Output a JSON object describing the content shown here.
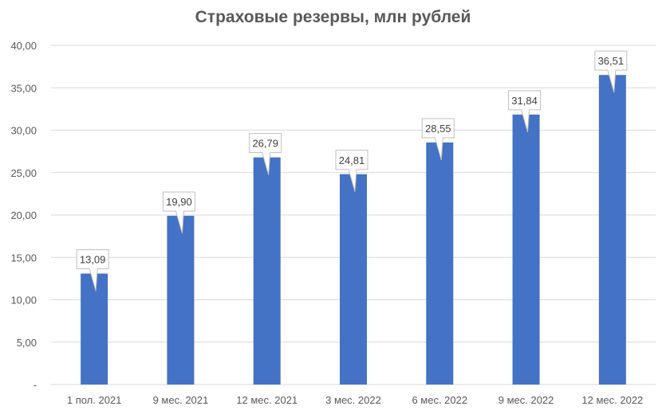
{
  "chart_data": {
    "type": "bar",
    "title": "Страховые резервы, млн рублей",
    "categories": [
      "1 пол. 2021",
      "9 мес. 2021",
      "12 мес. 2021",
      "3 мес. 2022",
      "6 мес. 2022",
      "9 мес. 2022",
      "12 мес. 2022"
    ],
    "values": [
      13.09,
      19.9,
      26.79,
      24.81,
      28.55,
      31.84,
      36.51
    ],
    "value_labels": [
      "13,09",
      "19,90",
      "26,79",
      "24,81",
      "28,55",
      "31,84",
      "36,51"
    ],
    "y_ticks": [
      "-",
      "5,00",
      "10,00",
      "15,00",
      "20,00",
      "25,00",
      "30,00",
      "35,00",
      "40,00"
    ],
    "ylim": [
      0,
      40
    ],
    "grid": true,
    "bar_color": "#4472C4",
    "grid_color": "#D9D9D9"
  }
}
